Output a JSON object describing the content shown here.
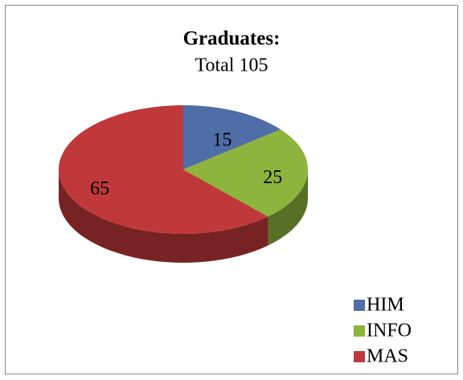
{
  "chart_data": {
    "type": "pie",
    "title": "Graduates:",
    "subtitle": "Total 105",
    "categories": [
      "HIM",
      "INFO",
      "MAS"
    ],
    "values": [
      15,
      25,
      65
    ],
    "colors": [
      "#4f6ea8",
      "#8db43c",
      "#c0383a"
    ],
    "legend": "bottom-right"
  }
}
